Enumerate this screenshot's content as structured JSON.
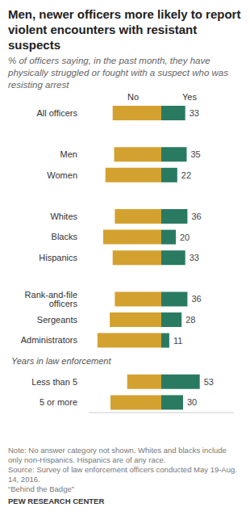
{
  "chart_data": {
    "type": "bar",
    "orientation": "horizontal",
    "title": "Men, newer officers more likely to report violent encounters with resistant suspects",
    "subtitle": "% of officers saying, in the past month, they have physically struggled or fought with a suspect who was resisting arrest",
    "categories": [
      "All officers",
      null,
      "Men",
      "Women",
      null,
      "Whites",
      "Blacks",
      "Hispanics",
      null,
      "Rank-and-file officers",
      "Sergeants",
      "Administrators",
      null,
      "Less than 5",
      "5 or more"
    ],
    "series": [
      {
        "name": "No",
        "color": "#d3a12f",
        "values": [
          67,
          null,
          65,
          77,
          null,
          64,
          80,
          67,
          null,
          64,
          71,
          88,
          null,
          47,
          70
        ]
      },
      {
        "name": "Yes",
        "color": "#2a7a62",
        "values": [
          33,
          null,
          35,
          22,
          null,
          36,
          20,
          33,
          null,
          36,
          28,
          11,
          null,
          53,
          30
        ]
      }
    ],
    "xlim": [
      0,
      100
    ],
    "tick_labels": "y",
    "data_labels": true,
    "grid": false,
    "annotations": [
      "Years in law enforcement"
    ],
    "notes": [
      "Note: No answer category not shown. Whites and blacks include only non-Hispanics. Hispanics are of any race.",
      "Source: Survey of law enforcement officers conducted May 19-Aug. 14, 2016.",
      "“Behind the Badge”"
    ],
    "footer": "PEW RESEARCH CENTER"
  }
}
